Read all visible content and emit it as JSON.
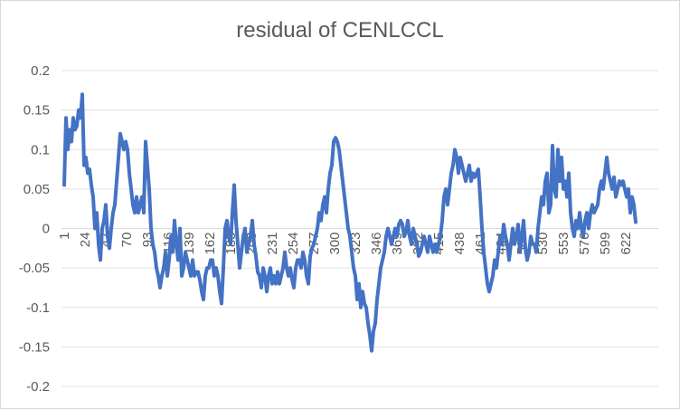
{
  "chart_data": {
    "type": "line",
    "title": "residual of CENLCCL",
    "xlabel": "",
    "ylabel": "",
    "ylim": [
      -0.2,
      0.2
    ],
    "y_ticks": [
      0.2,
      0.15,
      0.1,
      0.05,
      0,
      -0.05,
      -0.1,
      -0.15,
      -0.2
    ],
    "y_tick_labels": [
      "0.2",
      "0.15",
      "0.1",
      "0.05",
      "0",
      "-0.05",
      "-0.1",
      "-0.15",
      "-0.2"
    ],
    "x_range": [
      1,
      645
    ],
    "x_tick_labels": [
      "1",
      "24",
      "47",
      "70",
      "93",
      "116",
      "139",
      "162",
      "185",
      "208",
      "231",
      "254",
      "277",
      "300",
      "323",
      "346",
      "369",
      "392",
      "415",
      "438",
      "461",
      "484",
      "507",
      "530",
      "553",
      "576",
      "599",
      "622"
    ],
    "grid": "horizontal",
    "legend": "none",
    "line_color": "#4472c4",
    "series": [
      {
        "points": [
          [
            1,
            0.055
          ],
          [
            3,
            0.14
          ],
          [
            5,
            0.1
          ],
          [
            7,
            0.125
          ],
          [
            9,
            0.11
          ],
          [
            11,
            0.14
          ],
          [
            13,
            0.125
          ],
          [
            15,
            0.13
          ],
          [
            17,
            0.15
          ],
          [
            19,
            0.14
          ],
          [
            21,
            0.17
          ],
          [
            23,
            0.08
          ],
          [
            25,
            0.09
          ],
          [
            27,
            0.07
          ],
          [
            29,
            0.075
          ],
          [
            31,
            0.055
          ],
          [
            33,
            0.04
          ],
          [
            35,
            0.0
          ],
          [
            37,
            0.02
          ],
          [
            39,
            -0.02
          ],
          [
            41,
            -0.04
          ],
          [
            43,
            0.0
          ],
          [
            45,
            0.01
          ],
          [
            47,
            0.03
          ],
          [
            49,
            -0.01
          ],
          [
            51,
            -0.025
          ],
          [
            53,
            0.0
          ],
          [
            55,
            0.02
          ],
          [
            57,
            0.03
          ],
          [
            59,
            0.06
          ],
          [
            61,
            0.09
          ],
          [
            63,
            0.12
          ],
          [
            65,
            0.11
          ],
          [
            67,
            0.1
          ],
          [
            69,
            0.11
          ],
          [
            71,
            0.1
          ],
          [
            73,
            0.07
          ],
          [
            75,
            0.05
          ],
          [
            77,
            0.03
          ],
          [
            79,
            0.02
          ],
          [
            81,
            0.04
          ],
          [
            83,
            0.02
          ],
          [
            85,
            0.03
          ],
          [
            87,
            0.04
          ],
          [
            89,
            0.02
          ],
          [
            91,
            0.11
          ],
          [
            93,
            0.08
          ],
          [
            95,
            0.05
          ],
          [
            97,
            0.0
          ],
          [
            99,
            -0.02
          ],
          [
            101,
            -0.03
          ],
          [
            103,
            -0.05
          ],
          [
            105,
            -0.06
          ],
          [
            107,
            -0.075
          ],
          [
            109,
            -0.06
          ],
          [
            111,
            -0.05
          ],
          [
            113,
            -0.03
          ],
          [
            115,
            -0.06
          ],
          [
            117,
            -0.04
          ],
          [
            119,
            -0.01
          ],
          [
            121,
            -0.03
          ],
          [
            123,
            0.01
          ],
          [
            125,
            -0.02
          ],
          [
            127,
            -0.04
          ],
          [
            129,
            0.0
          ],
          [
            131,
            -0.06
          ],
          [
            133,
            -0.05
          ],
          [
            135,
            -0.03
          ],
          [
            137,
            -0.04
          ],
          [
            139,
            -0.05
          ],
          [
            141,
            -0.06
          ],
          [
            143,
            -0.04
          ],
          [
            145,
            -0.06
          ],
          [
            147,
            -0.055
          ],
          [
            149,
            -0.055
          ],
          [
            151,
            -0.065
          ],
          [
            153,
            -0.08
          ],
          [
            155,
            -0.09
          ],
          [
            157,
            -0.06
          ],
          [
            159,
            -0.05
          ],
          [
            161,
            -0.05
          ],
          [
            163,
            -0.04
          ],
          [
            165,
            -0.04
          ],
          [
            167,
            -0.06
          ],
          [
            169,
            -0.05
          ],
          [
            171,
            -0.06
          ],
          [
            173,
            -0.08
          ],
          [
            175,
            -0.095
          ],
          [
            177,
            -0.05
          ],
          [
            179,
            0.0
          ],
          [
            181,
            0.01
          ],
          [
            183,
            -0.01
          ],
          [
            185,
            -0.02
          ],
          [
            187,
            0.02
          ],
          [
            189,
            0.055
          ],
          [
            191,
            0.01
          ],
          [
            193,
            -0.02
          ],
          [
            195,
            -0.05
          ],
          [
            197,
            -0.03
          ],
          [
            199,
            -0.01
          ],
          [
            201,
            0.0
          ],
          [
            203,
            -0.03
          ],
          [
            205,
            -0.02
          ],
          [
            207,
            -0.01
          ],
          [
            209,
            0.01
          ],
          [
            211,
            -0.02
          ],
          [
            213,
            -0.035
          ],
          [
            215,
            -0.055
          ],
          [
            217,
            -0.06
          ],
          [
            219,
            -0.075
          ],
          [
            221,
            -0.05
          ],
          [
            223,
            -0.06
          ],
          [
            225,
            -0.08
          ],
          [
            227,
            -0.06
          ],
          [
            229,
            -0.05
          ],
          [
            231,
            -0.07
          ],
          [
            233,
            -0.06
          ],
          [
            235,
            -0.07
          ],
          [
            237,
            -0.055
          ],
          [
            239,
            -0.07
          ],
          [
            241,
            -0.06
          ],
          [
            243,
            -0.05
          ],
          [
            245,
            -0.03
          ],
          [
            247,
            -0.05
          ],
          [
            249,
            -0.06
          ],
          [
            251,
            -0.05
          ],
          [
            253,
            -0.065
          ],
          [
            255,
            -0.075
          ],
          [
            257,
            -0.05
          ],
          [
            259,
            -0.04
          ],
          [
            261,
            -0.04
          ],
          [
            263,
            -0.05
          ],
          [
            265,
            -0.03
          ],
          [
            267,
            -0.04
          ],
          [
            269,
            -0.06
          ],
          [
            271,
            -0.07
          ],
          [
            273,
            -0.035
          ],
          [
            275,
            -0.025
          ],
          [
            277,
            -0.02
          ],
          [
            279,
            -0.01
          ],
          [
            281,
            0.0
          ],
          [
            283,
            0.02
          ],
          [
            285,
            0.01
          ],
          [
            287,
            0.03
          ],
          [
            289,
            0.04
          ],
          [
            291,
            0.02
          ],
          [
            293,
            0.05
          ],
          [
            295,
            0.07
          ],
          [
            297,
            0.08
          ],
          [
            299,
            0.11
          ],
          [
            301,
            0.115
          ],
          [
            303,
            0.11
          ],
          [
            305,
            0.1
          ],
          [
            307,
            0.08
          ],
          [
            309,
            0.06
          ],
          [
            311,
            0.04
          ],
          [
            313,
            0.02
          ],
          [
            315,
            0.0
          ],
          [
            317,
            -0.01
          ],
          [
            319,
            -0.03
          ],
          [
            321,
            -0.05
          ],
          [
            323,
            -0.06
          ],
          [
            325,
            -0.09
          ],
          [
            327,
            -0.07
          ],
          [
            329,
            -0.1
          ],
          [
            331,
            -0.08
          ],
          [
            333,
            -0.095
          ],
          [
            335,
            -0.1
          ],
          [
            337,
            -0.12
          ],
          [
            339,
            -0.135
          ],
          [
            341,
            -0.155
          ],
          [
            343,
            -0.13
          ],
          [
            345,
            -0.12
          ],
          [
            347,
            -0.09
          ],
          [
            349,
            -0.07
          ],
          [
            351,
            -0.05
          ],
          [
            353,
            -0.04
          ],
          [
            355,
            -0.03
          ],
          [
            357,
            -0.01
          ],
          [
            359,
            0.0
          ],
          [
            361,
            -0.01
          ],
          [
            363,
            -0.02
          ],
          [
            365,
            -0.01
          ],
          [
            367,
            0.0
          ],
          [
            369,
            -0.01
          ],
          [
            371,
            0.005
          ],
          [
            373,
            0.01
          ],
          [
            375,
            0.005
          ],
          [
            377,
            -0.01
          ],
          [
            379,
            -0.005
          ],
          [
            381,
            0.01
          ],
          [
            383,
            -0.01
          ],
          [
            385,
            -0.02
          ],
          [
            387,
            0.0
          ],
          [
            389,
            -0.01
          ],
          [
            391,
            -0.02
          ],
          [
            393,
            -0.035
          ],
          [
            395,
            -0.03
          ],
          [
            397,
            -0.02
          ],
          [
            399,
            -0.01
          ],
          [
            401,
            -0.02
          ],
          [
            403,
            -0.03
          ],
          [
            405,
            -0.01
          ],
          [
            407,
            -0.02
          ],
          [
            409,
            -0.03
          ],
          [
            411,
            -0.02
          ],
          [
            413,
            -0.03
          ],
          [
            415,
            -0.02
          ],
          [
            417,
            -0.01
          ],
          [
            419,
            0.01
          ],
          [
            421,
            0.04
          ],
          [
            423,
            0.05
          ],
          [
            425,
            0.03
          ],
          [
            427,
            0.05
          ],
          [
            429,
            0.07
          ],
          [
            431,
            0.08
          ],
          [
            433,
            0.1
          ],
          [
            435,
            0.09
          ],
          [
            437,
            0.07
          ],
          [
            439,
            0.09
          ],
          [
            441,
            0.08
          ],
          [
            443,
            0.07
          ],
          [
            445,
            0.06
          ],
          [
            447,
            0.07
          ],
          [
            449,
            0.08
          ],
          [
            451,
            0.06
          ],
          [
            453,
            0.07
          ],
          [
            455,
            0.065
          ],
          [
            457,
            0.07
          ],
          [
            459,
            0.075
          ],
          [
            461,
            0.04
          ],
          [
            463,
            0.0
          ],
          [
            465,
            -0.03
          ],
          [
            467,
            -0.05
          ],
          [
            469,
            -0.07
          ],
          [
            471,
            -0.08
          ],
          [
            473,
            -0.07
          ],
          [
            475,
            -0.06
          ],
          [
            477,
            -0.04
          ],
          [
            479,
            -0.05
          ],
          [
            481,
            -0.03
          ],
          [
            483,
            -0.01
          ],
          [
            485,
            -0.02
          ],
          [
            487,
            0.005
          ],
          [
            489,
            -0.01
          ],
          [
            491,
            -0.02
          ],
          [
            493,
            -0.04
          ],
          [
            495,
            -0.02
          ],
          [
            497,
            0.0
          ],
          [
            499,
            -0.02
          ],
          [
            501,
            -0.01
          ],
          [
            503,
            0.005
          ],
          [
            505,
            -0.03
          ],
          [
            507,
            -0.01
          ],
          [
            509,
            0.01
          ],
          [
            511,
            -0.025
          ],
          [
            513,
            -0.04
          ],
          [
            515,
            -0.03
          ],
          [
            517,
            -0.01
          ],
          [
            519,
            -0.02
          ],
          [
            521,
            -0.02
          ],
          [
            523,
            -0.03
          ],
          [
            525,
            0.0
          ],
          [
            527,
            0.02
          ],
          [
            529,
            0.04
          ],
          [
            531,
            0.03
          ],
          [
            533,
            0.06
          ],
          [
            535,
            0.07
          ],
          [
            537,
            0.02
          ],
          [
            539,
            0.03
          ],
          [
            541,
            0.105
          ],
          [
            543,
            0.05
          ],
          [
            545,
            0.04
          ],
          [
            547,
            0.1
          ],
          [
            549,
            0.06
          ],
          [
            551,
            0.09
          ],
          [
            553,
            0.05
          ],
          [
            555,
            0.06
          ],
          [
            557,
            0.04
          ],
          [
            559,
            0.07
          ],
          [
            561,
            0.02
          ],
          [
            563,
            0.0
          ],
          [
            565,
            -0.01
          ],
          [
            567,
            0.01
          ],
          [
            569,
            0.0
          ],
          [
            571,
            0.02
          ],
          [
            573,
            0.0
          ],
          [
            575,
            -0.01
          ],
          [
            577,
            0.01
          ],
          [
            579,
            0.02
          ],
          [
            581,
            0.0
          ],
          [
            583,
            0.02
          ],
          [
            585,
            0.03
          ],
          [
            587,
            0.02
          ],
          [
            589,
            0.025
          ],
          [
            591,
            0.03
          ],
          [
            593,
            0.05
          ],
          [
            595,
            0.06
          ],
          [
            597,
            0.05
          ],
          [
            599,
            0.07
          ],
          [
            601,
            0.09
          ],
          [
            603,
            0.07
          ],
          [
            605,
            0.06
          ],
          [
            607,
            0.05
          ],
          [
            609,
            0.065
          ],
          [
            611,
            0.04
          ],
          [
            613,
            0.05
          ],
          [
            615,
            0.06
          ],
          [
            617,
            0.055
          ],
          [
            619,
            0.06
          ],
          [
            621,
            0.05
          ],
          [
            623,
            0.04
          ],
          [
            625,
            0.05
          ],
          [
            627,
            0.02
          ],
          [
            629,
            0.04
          ],
          [
            631,
            0.03
          ],
          [
            633,
            0.008
          ]
        ]
      }
    ]
  }
}
